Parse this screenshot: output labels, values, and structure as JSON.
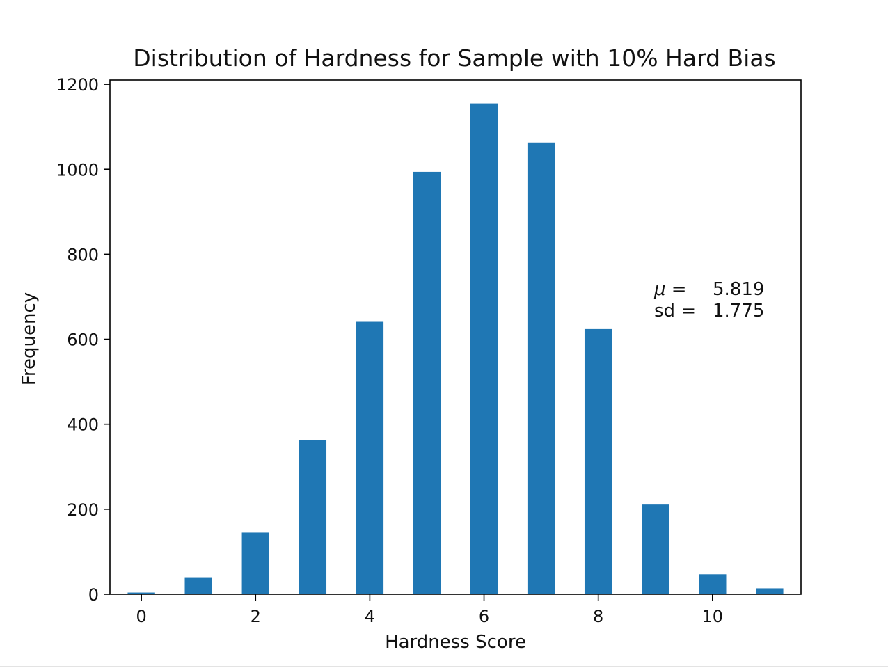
{
  "chart_data": {
    "type": "bar",
    "title": "Distribution of Hardness for Sample with 10% Hard Bias",
    "xlabel": "Hardness Score",
    "ylabel": "Frequency",
    "x": [
      0,
      1,
      2,
      3,
      4,
      5,
      6,
      7,
      8,
      9,
      10,
      11
    ],
    "values": [
      4,
      40,
      145,
      362,
      641,
      994,
      1155,
      1063,
      624,
      211,
      47,
      14
    ],
    "xlim": [
      -0.55,
      11.55
    ],
    "ylim": [
      0,
      1210
    ],
    "xticks": [
      0,
      2,
      4,
      6,
      8,
      10
    ],
    "yticks": [
      0,
      200,
      400,
      600,
      800,
      1000,
      1200
    ],
    "grid": false,
    "bar_color": "#1f77b4",
    "annotation": {
      "mu_label": "μ =",
      "mu_value": "5.819",
      "sd_label": "sd =",
      "sd_value": "1.775"
    }
  }
}
